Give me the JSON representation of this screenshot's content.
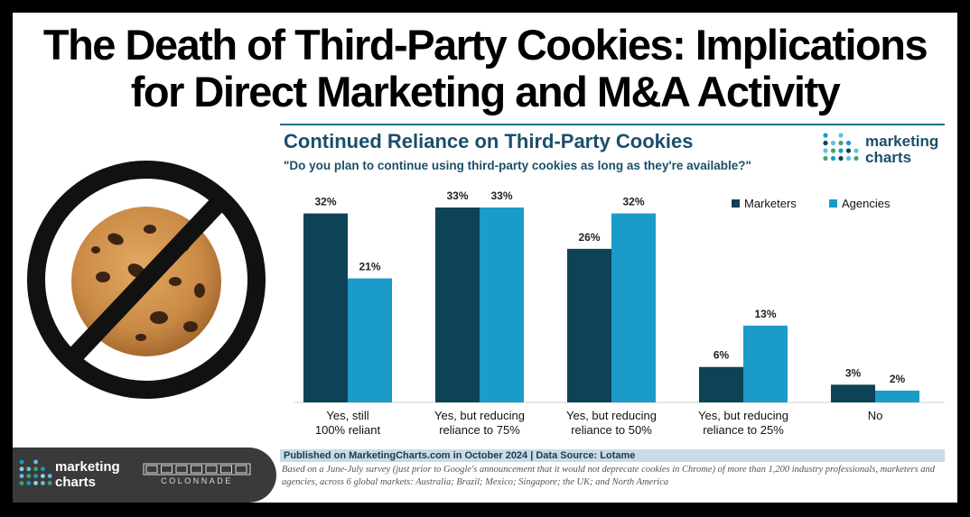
{
  "headline": {
    "line1": "The Death of Third-Party Cookies: Implications",
    "line2": "for Direct Marketing and M&A Activity"
  },
  "logo": {
    "line1": "marketing",
    "line2": "charts"
  },
  "bottom_logo": {
    "line1": "marketing",
    "line2": "charts",
    "partner": "COLONNADE"
  },
  "footer": {
    "published": "Published on MarketingCharts.com in October 2024 | Data Source: Lotame",
    "note": "Based on a June-July survey (just prior to Google's announcement that it would not deprecate cookies in Chrome) of more than 1,200 industry professionals, marketers and agencies, across 6 global markets: Australia; Brazil; Mexico; Singapore; the UK; and North America"
  },
  "colors": {
    "marketers": "#0e4257",
    "agencies": "#1a9bc8",
    "title": "#1b4f6a"
  },
  "chart_data": {
    "type": "bar",
    "title": "Continued Reliance on Third-Party Cookies",
    "subtitle": "\"Do you plan to continue using third-party cookies as long as they're available?\"",
    "categories": [
      [
        "Yes, still",
        "100% reliant"
      ],
      [
        "Yes, but reducing",
        "reliance to 75%"
      ],
      [
        "Yes, but reducing",
        "reliance to 50%"
      ],
      [
        "Yes, but reducing",
        "reliance to 25%"
      ],
      [
        "No"
      ]
    ],
    "series": [
      {
        "name": "Marketers",
        "values": [
          32,
          33,
          26,
          6,
          3
        ],
        "labels": [
          "32%",
          "33%",
          "26%",
          "6%",
          "3%"
        ],
        "color": "#0e4257"
      },
      {
        "name": "Agencies",
        "values": [
          21,
          33,
          32,
          13,
          2
        ],
        "labels": [
          "21%",
          "33%",
          "32%",
          "13%",
          "2%"
        ],
        "color": "#1a9bc8"
      }
    ],
    "ylim": [
      0,
      33
    ],
    "grid": false,
    "legend": "top-right"
  }
}
